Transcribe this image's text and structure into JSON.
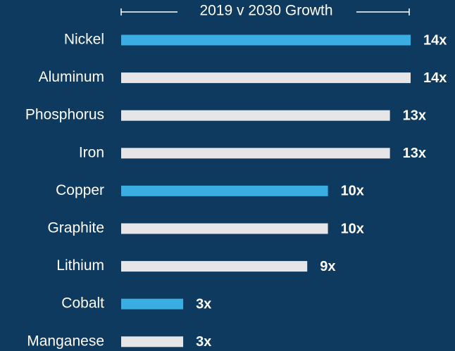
{
  "chart_data": {
    "type": "bar",
    "orientation": "horizontal",
    "title": "2019 v 2030 Growth",
    "categories": [
      "Nickel",
      "Aluminum",
      "Phosphorus",
      "Iron",
      "Copper",
      "Graphite",
      "Lithium",
      "Cobalt",
      "Manganese"
    ],
    "values": [
      14,
      14,
      13,
      13,
      10,
      10,
      9,
      3,
      3
    ],
    "value_labels": [
      "14x",
      "14x",
      "13x",
      "13x",
      "10x",
      "10x",
      "9x",
      "3x",
      "3x"
    ],
    "colors": [
      "#3aaee2",
      "#e6e6e8",
      "#e6e6e8",
      "#e6e6e8",
      "#3aaee2",
      "#e6e6e8",
      "#e6e6e8",
      "#3aaee2",
      "#e6e6e8"
    ],
    "xlim": [
      0,
      14
    ]
  }
}
